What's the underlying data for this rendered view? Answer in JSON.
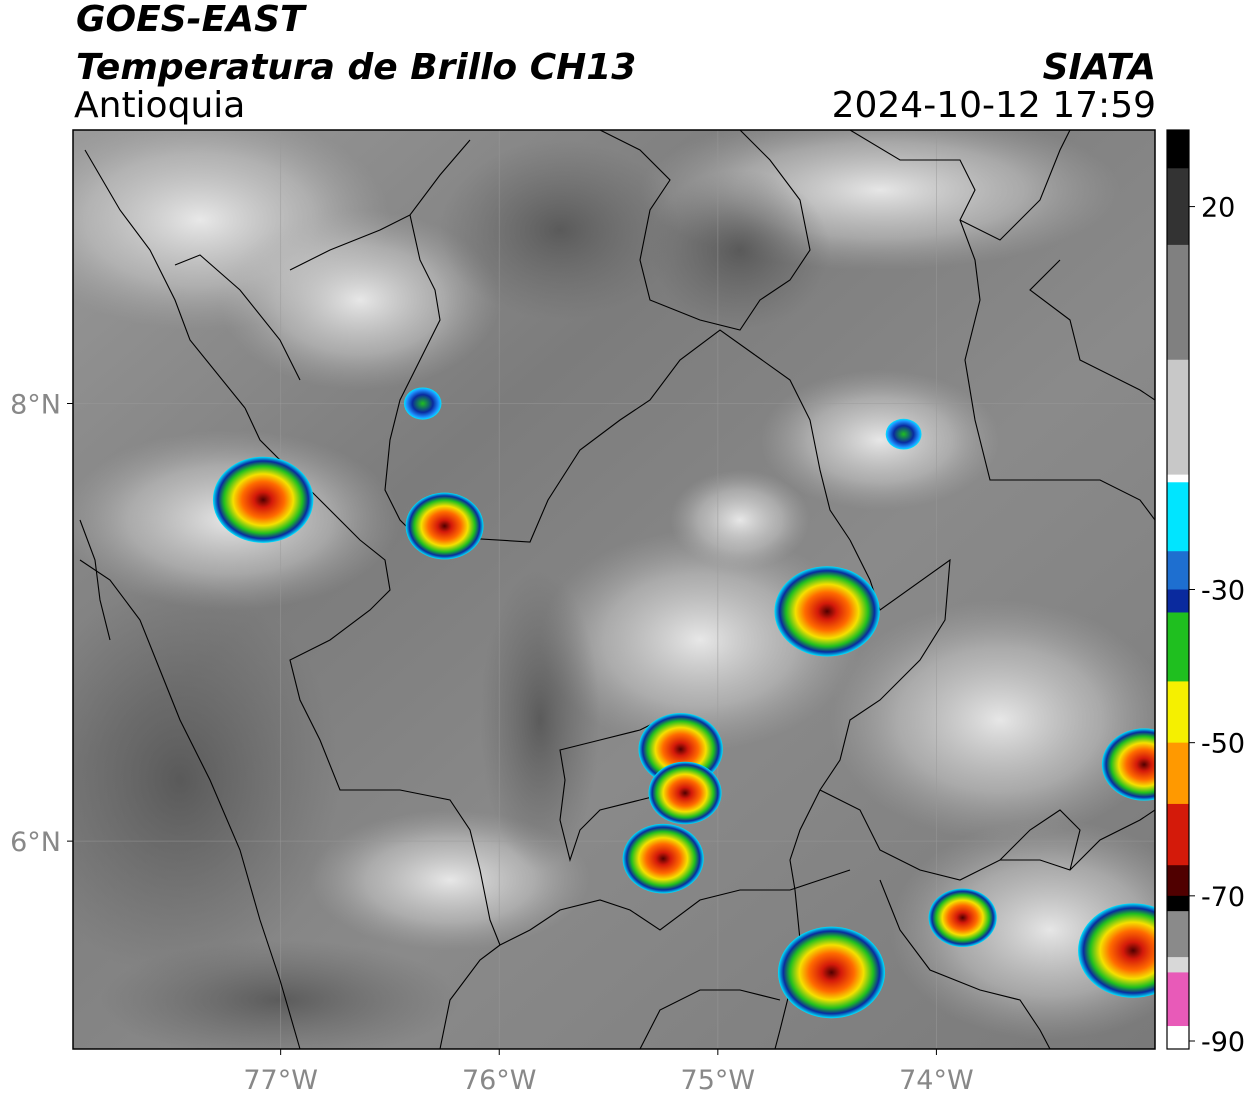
{
  "header": {
    "satellite": "GOES-EAST",
    "product": "Temperatura de Brillo CH13",
    "region": "Antioquia",
    "agency": "SIATA",
    "timestamp": "2024-10-12 17:59"
  },
  "map": {
    "lon_range": [
      -77.95,
      -73.0
    ],
    "lat_range": [
      5.05,
      9.25
    ],
    "lon_ticks": [
      {
        "value": -77,
        "label": "77°W"
      },
      {
        "value": -76,
        "label": "76°W"
      },
      {
        "value": -75,
        "label": "75°W"
      },
      {
        "value": -74,
        "label": "74°W"
      }
    ],
    "lat_ticks": [
      {
        "value": 8,
        "label": "8°N"
      },
      {
        "value": 6,
        "label": "6°N"
      }
    ],
    "gridlines": true,
    "label_color": "#888888"
  },
  "colorbar": {
    "unit_range": [
      -90,
      30
    ],
    "tick_labels": [
      {
        "value": 20,
        "label": "20"
      },
      {
        "value": -30,
        "label": "-30"
      },
      {
        "value": -50,
        "label": "-50"
      },
      {
        "value": -70,
        "label": "-70"
      },
      {
        "value": -90,
        "label": "-90"
      }
    ],
    "colors": {
      "warm_black": "#000000",
      "mid_gray": "#808080",
      "white": "#ffffff",
      "cyan": "#00e5ff",
      "blue": "#0a2a9e",
      "green": "#1fbf1f",
      "yellow": "#f5f000",
      "orange": "#ff9900",
      "red": "#d41a0a",
      "dark_red": "#500000",
      "pink": "#e85ab8",
      "magenta": "#a52aa0"
    }
  },
  "storm_cells": [
    {
      "lon": -77.08,
      "lat": 7.56,
      "min_temp_c": -72
    },
    {
      "lon": -76.25,
      "lat": 7.44,
      "min_temp_c": -58
    },
    {
      "lon": -74.5,
      "lat": 7.05,
      "min_temp_c": -75
    },
    {
      "lon": -75.17,
      "lat": 6.42,
      "min_temp_c": -62
    },
    {
      "lon": -75.15,
      "lat": 6.22,
      "min_temp_c": -55
    },
    {
      "lon": -75.25,
      "lat": 5.92,
      "min_temp_c": -60
    },
    {
      "lon": -74.48,
      "lat": 5.4,
      "min_temp_c": -76
    },
    {
      "lon": -73.88,
      "lat": 5.65,
      "min_temp_c": -52
    },
    {
      "lon": -73.1,
      "lat": 5.5,
      "min_temp_c": -78
    },
    {
      "lon": -73.05,
      "lat": 6.35,
      "min_temp_c": -62
    },
    {
      "lon": -74.15,
      "lat": 7.86,
      "min_temp_c": -32
    },
    {
      "lon": -76.35,
      "lat": 8.0,
      "min_temp_c": -33
    }
  ]
}
